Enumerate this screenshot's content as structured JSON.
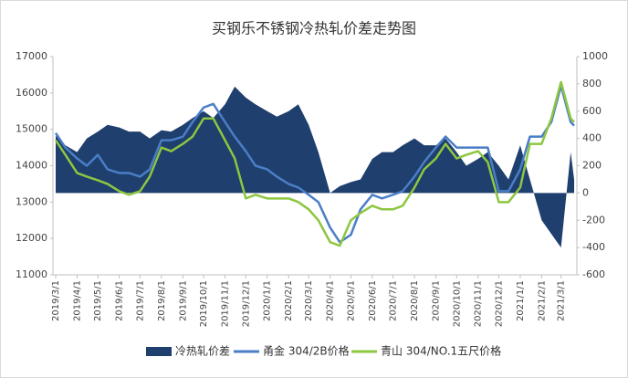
{
  "chart_data": {
    "type": "line",
    "title": "买钢乐不锈钢冷热轧价差走势图",
    "x": [
      "2019/3/1",
      "2019/3/15",
      "2019/4/1",
      "2019/4/15",
      "2019/5/1",
      "2019/5/15",
      "2019/6/1",
      "2019/6/15",
      "2019/7/1",
      "2019/7/15",
      "2019/8/1",
      "2019/8/15",
      "2019/9/1",
      "2019/9/15",
      "2019/10/1",
      "2019/10/15",
      "2019/11/1",
      "2019/11/15",
      "2019/12/1",
      "2019/12/15",
      "2020/1/1",
      "2020/1/15",
      "2020/2/1",
      "2020/2/15",
      "2020/3/1",
      "2020/3/15",
      "2020/4/1",
      "2020/4/15",
      "2020/5/1",
      "2020/5/15",
      "2020/6/1",
      "2020/6/15",
      "2020/7/1",
      "2020/7/15",
      "2020/8/1",
      "2020/8/15",
      "2020/9/1",
      "2020/9/15",
      "2020/10/1",
      "2020/10/15",
      "2020/11/1",
      "2020/11/15",
      "2020/12/1",
      "2020/12/15",
      "2021/1/1",
      "2021/1/15",
      "2021/2/1",
      "2021/2/15",
      "2021/3/1",
      "2021/3/15",
      "2021/3/20"
    ],
    "series": [
      {
        "name": "冷热轧价差",
        "kind": "area",
        "axis": "y2",
        "color": "#1f3f6e",
        "values": [
          420,
          350,
          300,
          400,
          450,
          500,
          480,
          450,
          450,
          400,
          460,
          450,
          500,
          550,
          600,
          550,
          650,
          780,
          700,
          650,
          600,
          560,
          600,
          650,
          500,
          300,
          0,
          50,
          80,
          100,
          250,
          300,
          300,
          350,
          400,
          350,
          350,
          400,
          300,
          200,
          250,
          300,
          200,
          100,
          350,
          100,
          -200,
          -300,
          -400,
          300,
          100
        ]
      },
      {
        "name": "甬金 304/2B价格",
        "kind": "line",
        "color": "#4a7ec6",
        "values": [
          14900,
          14500,
          14200,
          14000,
          14300,
          13900,
          13800,
          13800,
          13700,
          13900,
          14700,
          14700,
          14800,
          15200,
          15600,
          15700,
          15200,
          14800,
          14400,
          14000,
          13900,
          13700,
          13500,
          13400,
          13200,
          13000,
          12300,
          11900,
          12100,
          12800,
          13200,
          13100,
          13200,
          13300,
          13700,
          14100,
          14500,
          14800,
          14500,
          14500,
          14500,
          14500,
          13300,
          13300,
          13900,
          14800,
          14800,
          15200,
          16200,
          15200,
          15100
        ]
      },
      {
        "name": "青山 304/NO.1五尺价格",
        "kind": "line",
        "color": "#8dc641",
        "values": [
          14700,
          14300,
          13800,
          13700,
          13600,
          13500,
          13300,
          13200,
          13300,
          13700,
          14500,
          14400,
          14600,
          14800,
          15300,
          15300,
          14700,
          14200,
          13100,
          13200,
          13100,
          13100,
          13100,
          13000,
          12800,
          12500,
          11900,
          11800,
          12500,
          12700,
          12900,
          12800,
          12800,
          12900,
          13400,
          13900,
          14200,
          14600,
          14200,
          14300,
          14400,
          14100,
          13000,
          13000,
          13400,
          14600,
          14600,
          15300,
          16300,
          15300,
          15200
        ]
      }
    ],
    "xlim": [
      "2019/3/1",
      "2021/3/20"
    ],
    "xticks": [
      "2019/3/1",
      "2019/4/1",
      "2019/5/1",
      "2019/6/1",
      "2019/7/1",
      "2019/8/1",
      "2019/9/1",
      "2019/10/1",
      "2019/11/1",
      "2019/12/1",
      "2020/1/1",
      "2020/2/1",
      "2020/3/1",
      "2020/4/1",
      "2020/5/1",
      "2020/6/1",
      "2020/7/1",
      "2020/8/1",
      "2020/9/1",
      "2020/10/1",
      "2020/11/1",
      "2020/12/1",
      "2021/1/1",
      "2021/2/1",
      "2021/3/1"
    ],
    "ylim": [
      11000,
      17000
    ],
    "yticks": [
      11000,
      12000,
      13000,
      14000,
      15000,
      16000,
      17000
    ],
    "y2lim": [
      -600,
      1000
    ],
    "y2ticks": [
      -600,
      -400,
      -200,
      0,
      200,
      400,
      600,
      800,
      1000
    ]
  }
}
